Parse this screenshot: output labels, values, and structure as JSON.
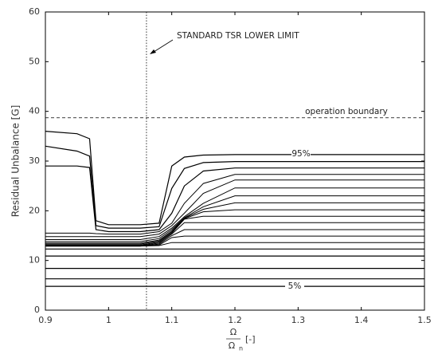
{
  "chart_data": {
    "type": "line",
    "y_label": "Residual Unbalance [G]",
    "x_label": {
      "numerator": "Ω",
      "denominator": "Ω",
      "subscript": "n",
      "unit": "[-]"
    },
    "xlim": [
      0.9,
      1.5
    ],
    "xticks": [
      0.9,
      1,
      1.1,
      1.2,
      1.3,
      1.4,
      1.5
    ],
    "ylim": [
      0,
      60
    ],
    "yticks": [
      0,
      10,
      20,
      30,
      40,
      50,
      60
    ],
    "color": "#000000",
    "reference_lines": {
      "x": 1.06,
      "y": 38.7
    },
    "annotations": [
      "STANDARD TSR LOWER LIMIT",
      "operation boundary",
      "95%",
      "5%"
    ],
    "x": [
      0.9,
      0.95,
      0.97,
      0.98,
      1.0,
      1.05,
      1.08,
      1.1,
      1.12,
      1.15,
      1.2,
      1.3,
      1.5
    ],
    "series": [
      {
        "values": [
          36,
          35.5,
          34.5,
          18,
          17.2,
          17.2,
          17.5,
          29,
          30.8,
          31.2,
          31.3,
          31.3,
          31.3
        ]
      },
      {
        "values": [
          33,
          32,
          31,
          17,
          16.5,
          16.5,
          16.8,
          24.5,
          28.5,
          29.7,
          29.9,
          29.9,
          29.9
        ]
      },
      {
        "values": [
          29,
          29,
          28.7,
          16.2,
          15.8,
          15.8,
          16.2,
          19.5,
          25,
          28,
          28.6,
          28.6,
          28.6
        ]
      },
      {
        "values": [
          15.5,
          15.5,
          15.5,
          15.4,
          15.3,
          15.3,
          15.8,
          17.5,
          21.5,
          25.5,
          27.3,
          27.3,
          27.3
        ]
      },
      {
        "values": [
          14.8,
          14.8,
          14.8,
          14.8,
          14.8,
          14.8,
          15.3,
          17,
          19.5,
          23.5,
          26.2,
          26.2,
          26.2
        ]
      },
      {
        "values": [
          14.2,
          14.2,
          14.2,
          14.2,
          14.2,
          14.2,
          14.8,
          16.5,
          18.8,
          21.5,
          24.6,
          24.6,
          24.6
        ]
      },
      {
        "values": [
          13.8,
          13.8,
          13.8,
          13.8,
          13.8,
          13.8,
          14.4,
          16.2,
          18.6,
          20.8,
          23,
          23,
          23
        ]
      },
      {
        "values": [
          13.5,
          13.5,
          13.5,
          13.5,
          13.5,
          13.5,
          14.1,
          15.9,
          18.5,
          20.3,
          21.6,
          21.6,
          21.6
        ]
      },
      {
        "values": [
          13.3,
          13.3,
          13.3,
          13.3,
          13.3,
          13.3,
          13.9,
          15.7,
          18.4,
          19.8,
          20.2,
          20.2,
          20.2
        ]
      },
      {
        "values": [
          13.1,
          13.1,
          13.1,
          13.1,
          13.1,
          13.1,
          13.7,
          15.5,
          18.3,
          18.9,
          18.9,
          18.9,
          18.9
        ]
      },
      {
        "values": [
          13,
          13,
          13,
          13,
          13,
          13,
          13.5,
          15.3,
          17.6,
          17.6,
          17.6,
          17.6,
          17.6
        ]
      },
      {
        "values": [
          12.9,
          12.9,
          12.9,
          12.9,
          12.9,
          12.9,
          13.3,
          15,
          16.2,
          16.2,
          16.2,
          16.2,
          16.2
        ]
      },
      {
        "values": [
          12.9,
          12.9,
          12.9,
          12.9,
          12.9,
          12.9,
          13.1,
          14.6,
          14.9,
          14.9,
          14.9,
          14.9,
          14.9
        ]
      },
      {
        "values": [
          12.9,
          12.9,
          12.9,
          12.9,
          12.9,
          12.9,
          13,
          13.6,
          13.6,
          13.6,
          13.6,
          13.6,
          13.6
        ]
      },
      {
        "values": [
          12.3,
          12.3,
          12.3,
          12.3,
          12.3,
          12.3,
          12.3,
          12.3,
          12.3,
          12.3,
          12.3,
          12.3,
          12.3
        ]
      },
      {
        "values": [
          10.9,
          10.9,
          10.9,
          10.9,
          10.9,
          10.9,
          10.9,
          10.9,
          10.9,
          10.9,
          10.9,
          10.9,
          10.9
        ]
      },
      {
        "values": [
          8.4,
          8.4,
          8.4,
          8.4,
          8.4,
          8.4,
          8.4,
          8.4,
          8.4,
          8.4,
          8.4,
          8.4,
          8.4
        ]
      },
      {
        "values": [
          6.3,
          6.3,
          6.3,
          6.3,
          6.3,
          6.3,
          6.3,
          6.3,
          6.3,
          6.3,
          6.3,
          6.3,
          6.3
        ]
      },
      {
        "values": [
          4.8,
          4.8,
          4.8,
          4.8,
          4.8,
          4.8,
          4.8,
          4.8,
          4.8,
          4.8,
          4.8,
          4.8,
          4.8
        ]
      }
    ]
  }
}
